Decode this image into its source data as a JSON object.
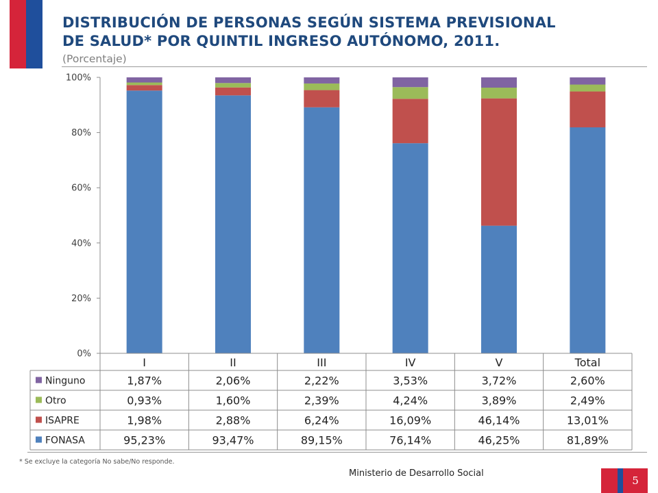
{
  "header": {
    "title_line1": "DISTRIBUCIÓN DE PERSONAS SEGÚN SISTEMA PREVISIONAL",
    "title_line2": "DE SALUD* POR QUINTIL INGRESO AUTÓNOMO, 2011.",
    "subtitle": "(Porcentaje)"
  },
  "footer": {
    "footnote": "* Se excluye la categoría No sabe/No responde.",
    "ministry": "Ministerio de Desarrollo Social",
    "page_number": "5"
  },
  "colors": {
    "FONASA": "#4f81bd",
    "ISAPRE": "#c0504d",
    "Otro": "#9bbb59",
    "Ninguno": "#8064a2",
    "title": "#1f497d",
    "flag_red": "#d5243a",
    "flag_blue": "#1f4f9c"
  },
  "chart_data": {
    "type": "bar",
    "stacked": true,
    "title": "DISTRIBUCIÓN DE PERSONAS SEGÚN SISTEMA PREVISIONAL DE SALUD* POR QUINTIL INGRESO AUTÓNOMO, 2011.",
    "subtitle": "(Porcentaje)",
    "categories": [
      "I",
      "II",
      "III",
      "IV",
      "V",
      "Total"
    ],
    "ylim": [
      0,
      100
    ],
    "yticks": [
      "0%",
      "20%",
      "40%",
      "60%",
      "80%",
      "100%"
    ],
    "series": [
      {
        "name": "FONASA",
        "values": [
          95.23,
          93.47,
          89.15,
          76.14,
          46.25,
          81.89
        ],
        "labels": [
          "95,23%",
          "93,47%",
          "89,15%",
          "76,14%",
          "46,25%",
          "81,89%"
        ]
      },
      {
        "name": "ISAPRE",
        "values": [
          1.98,
          2.88,
          6.24,
          16.09,
          46.14,
          13.01
        ],
        "labels": [
          "1,98%",
          "2,88%",
          "6,24%",
          "16,09%",
          "46,14%",
          "13,01%"
        ]
      },
      {
        "name": "Otro",
        "values": [
          0.93,
          1.6,
          2.39,
          4.24,
          3.89,
          2.49
        ],
        "labels": [
          "0,93%",
          "1,60%",
          "2,39%",
          "4,24%",
          "3,89%",
          "2,49%"
        ]
      },
      {
        "name": "Ninguno",
        "values": [
          1.87,
          2.06,
          2.22,
          3.53,
          3.72,
          2.6
        ],
        "labels": [
          "1,87%",
          "2,06%",
          "2,22%",
          "3,53%",
          "3,72%",
          "2,60%"
        ]
      }
    ],
    "table_row_order": [
      "Ninguno",
      "Otro",
      "ISAPRE",
      "FONASA"
    ],
    "legend": "data-table"
  }
}
